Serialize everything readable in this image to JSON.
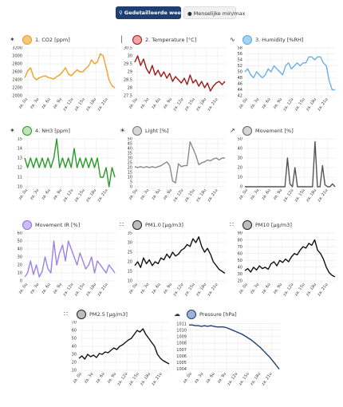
{
  "toolbar": {
    "detail_label": "Gedetailleerde weergave",
    "minmax_label": "Menselijke min/max"
  },
  "x_tick_labels": [
    "za. 0u",
    "za. 3u",
    "za. 6u",
    "za. 9u",
    "za. 12u",
    "za. 15u",
    "za. 18u",
    "za. 21u"
  ],
  "panels": [
    {
      "id": "co2",
      "label": "1. CO2 [ppm]",
      "icon": "co2-icon",
      "glyph": "✶",
      "dot_fill": "#f6c77a",
      "dot_border": "#e59d1b",
      "line_color": "#f0a020"
    },
    {
      "id": "temperature",
      "label": "2. Temperature [°C]",
      "icon": "thermometer-icon",
      "glyph": "│",
      "dot_fill": "#f3a5a5",
      "dot_border": "#a01818",
      "line_color": "#a01818"
    },
    {
      "id": "humidity",
      "label": "3. Humidity [%RH]",
      "icon": "humidity-icon",
      "glyph": "∿",
      "dot_fill": "#a8d2f2",
      "dot_border": "#5aa7e0",
      "line_color": "#6aafe6"
    },
    {
      "id": "nh3",
      "label": "4. NH3 [ppm]",
      "icon": "nh3-icon",
      "glyph": "✶",
      "dot_fill": "#bfe4b5",
      "dot_border": "#2a9a2a",
      "line_color": "#2a9a2a"
    },
    {
      "id": "light",
      "label": "Light [%]",
      "icon": "sun-icon",
      "glyph": "☀",
      "dot_fill": "#d6d6d6",
      "dot_border": "#777777",
      "line_color": "#8a8a8a"
    },
    {
      "id": "movement",
      "label": "Movement [%]",
      "icon": "movement-icon",
      "glyph": "↗",
      "dot_fill": "#d6d6d6",
      "dot_border": "#666666",
      "line_color": "#555555"
    },
    {
      "id": "movement_ir",
      "label": "Movement IR [%]",
      "icon": "",
      "glyph": "",
      "dot_fill": "#cbbcf5",
      "dot_border": "#8a72e0",
      "line_color": "#9a82e6"
    },
    {
      "id": "pm1",
      "label": "PM1.0 [µg/m3]",
      "icon": "particles-icon",
      "glyph": "∷",
      "dot_fill": "#bdbdbd",
      "dot_border": "#222222",
      "line_color": "#111111"
    },
    {
      "id": "pm10",
      "label": "PM10 [µg/m3]",
      "icon": "particles-icon",
      "glyph": "∷",
      "dot_fill": "#bdbdbd",
      "dot_border": "#222222",
      "line_color": "#111111"
    },
    {
      "id": "pm25",
      "label": "PM2.5 [µg/m3]",
      "icon": "particles-icon",
      "glyph": "∷",
      "dot_fill": "#bdbdbd",
      "dot_border": "#222222",
      "line_color": "#111111"
    },
    {
      "id": "pressure",
      "label": "Pressure [hPa]",
      "icon": "cloud-icon",
      "glyph": "☁",
      "dot_fill": "#9fb3d6",
      "dot_border": "#1f3f73",
      "line_color": "#1f3f73"
    }
  ],
  "chart_data": [
    {
      "id": "co2",
      "type": "line",
      "series": [
        {
          "values": [
            2450,
            2620,
            2700,
            2480,
            2400,
            2450,
            2480,
            2500,
            2460,
            2440,
            2420,
            2480,
            2520,
            2600,
            2700,
            2550,
            2500,
            2580,
            2650,
            2600,
            2600,
            2680,
            2750,
            2900,
            2800,
            2850,
            3050,
            3000,
            2700,
            2400,
            2250,
            2200
          ]
        }
      ],
      "y_ticks": [
        3200,
        3000,
        2800,
        2600,
        2400,
        2200,
        2000
      ],
      "ylim": [
        2000,
        3200
      ]
    },
    {
      "id": "temperature",
      "type": "line",
      "series": [
        {
          "values": [
            29.6,
            30.0,
            29.4,
            29.8,
            29.2,
            28.9,
            29.4,
            28.8,
            29.1,
            28.7,
            29.0,
            28.6,
            28.9,
            28.4,
            28.7,
            28.5,
            28.3,
            28.6,
            28.2,
            28.8,
            28.3,
            28.5,
            28.1,
            28.4,
            28.0,
            28.3,
            27.8,
            28.1,
            28.3,
            28.4,
            28.2,
            28.4
          ]
        }
      ],
      "y_ticks": [
        30.5,
        30.0,
        29.5,
        29.0,
        28.5,
        28.0,
        27.5
      ],
      "ylim": [
        27.5,
        30.5
      ]
    },
    {
      "id": "humidity",
      "type": "line",
      "series": [
        {
          "values": [
            50,
            51,
            49,
            48,
            50,
            49,
            48,
            49,
            51,
            50,
            52,
            51,
            50,
            49,
            52,
            53,
            51,
            52,
            53,
            52,
            53,
            53,
            55,
            55,
            54,
            55,
            55,
            53,
            52,
            47,
            44,
            44
          ]
        }
      ],
      "y_ticks": [
        58,
        56,
        54,
        52,
        50,
        48,
        46,
        44,
        42
      ],
      "ylim": [
        42,
        58
      ]
    },
    {
      "id": "nh3",
      "type": "line",
      "series": [
        {
          "values": [
            13,
            12,
            13,
            12,
            13,
            12,
            13,
            12,
            13,
            12,
            13,
            15,
            12,
            13,
            12,
            13,
            12,
            14,
            12,
            13,
            12,
            13,
            12,
            13,
            12,
            13,
            11,
            11,
            12,
            10,
            12,
            11
          ]
        }
      ],
      "y_ticks": [
        15,
        14,
        13,
        12,
        11,
        10
      ],
      "ylim": [
        10,
        15
      ]
    },
    {
      "id": "light",
      "type": "line",
      "series": [
        {
          "values": [
            21,
            20,
            21,
            20,
            21,
            20,
            21,
            20,
            21,
            22,
            24,
            26,
            22,
            6,
            4,
            24,
            21,
            22,
            22,
            47,
            40,
            33,
            23,
            25,
            26,
            28,
            27,
            29,
            30,
            28,
            30,
            30
          ]
        }
      ],
      "y_ticks": [
        50,
        45,
        40,
        35,
        30,
        25,
        20,
        15,
        10,
        5,
        0
      ],
      "ylim": [
        0,
        50
      ]
    },
    {
      "id": "movement",
      "type": "line",
      "series": [
        {
          "values": [
            0,
            0,
            0,
            0,
            0,
            0,
            0,
            0,
            0,
            0,
            0,
            0,
            0,
            0,
            0,
            0,
            0,
            30,
            3,
            0,
            20,
            0,
            0,
            0,
            0,
            0,
            0,
            0,
            47,
            0,
            0,
            22,
            2,
            0,
            0,
            3,
            0
          ]
        }
      ],
      "y_ticks": [
        50,
        40,
        30,
        20,
        10,
        0
      ],
      "ylim": [
        0,
        50
      ]
    },
    {
      "id": "movement_ir",
      "type": "line",
      "series": [
        {
          "values": [
            5,
            10,
            25,
            8,
            20,
            5,
            12,
            30,
            15,
            10,
            50,
            20,
            35,
            45,
            25,
            50,
            40,
            30,
            20,
            35,
            25,
            15,
            20,
            30,
            10,
            25,
            20,
            15,
            10,
            20,
            15,
            10
          ]
        }
      ],
      "y_ticks": [
        60,
        50,
        40,
        30,
        20,
        10,
        0
      ],
      "ylim": [
        0,
        60
      ]
    },
    {
      "id": "pm1",
      "type": "line",
      "series": [
        {
          "values": [
            18,
            20,
            17,
            22,
            19,
            21,
            18,
            20,
            19,
            22,
            21,
            24,
            22,
            25,
            23,
            24,
            26,
            27,
            29,
            28,
            32,
            30,
            33,
            28,
            25,
            27,
            24,
            20,
            18,
            16,
            15,
            14
          ]
        }
      ],
      "y_ticks": [
        35,
        30,
        25,
        20,
        15,
        10
      ],
      "ylim": [
        10,
        35
      ]
    },
    {
      "id": "pm10",
      "type": "line",
      "series": [
        {
          "values": [
            35,
            38,
            33,
            40,
            36,
            42,
            38,
            40,
            37,
            45,
            48,
            42,
            50,
            47,
            52,
            48,
            55,
            60,
            58,
            65,
            70,
            68,
            75,
            72,
            80,
            65,
            60,
            52,
            40,
            32,
            28,
            26
          ]
        }
      ],
      "y_ticks": [
        90,
        80,
        70,
        60,
        50,
        40,
        30,
        20
      ],
      "ylim": [
        20,
        90
      ]
    },
    {
      "id": "pm25",
      "type": "line",
      "series": [
        {
          "values": [
            25,
            28,
            24,
            30,
            27,
            29,
            26,
            31,
            30,
            33,
            32,
            35,
            38,
            36,
            40,
            42,
            45,
            48,
            50,
            55,
            60,
            58,
            62,
            55,
            50,
            45,
            40,
            30,
            25,
            22,
            20,
            18
          ]
        }
      ],
      "y_ticks": [
        70,
        60,
        50,
        40,
        30,
        20,
        10
      ],
      "ylim": [
        10,
        70
      ]
    },
    {
      "id": "pressure",
      "type": "line",
      "series": [
        {
          "values": [
            1010.8,
            1010.8,
            1010.7,
            1010.7,
            1010.6,
            1010.7,
            1010.6,
            1010.7,
            1010.6,
            1010.5,
            1010.5,
            1010.5,
            1010.4,
            1010.2,
            1010.0,
            1009.8,
            1009.6,
            1009.4,
            1009.1,
            1008.8,
            1008.5,
            1008.1,
            1007.7,
            1007.3,
            1006.8,
            1006.3,
            1005.8,
            1005.2,
            1004.6,
            1004.0
          ]
        }
      ],
      "y_ticks": [
        1011,
        1010,
        1009,
        1008,
        1007,
        1006,
        1005,
        1004
      ],
      "ylim": [
        1003.8,
        1011.2
      ]
    }
  ]
}
